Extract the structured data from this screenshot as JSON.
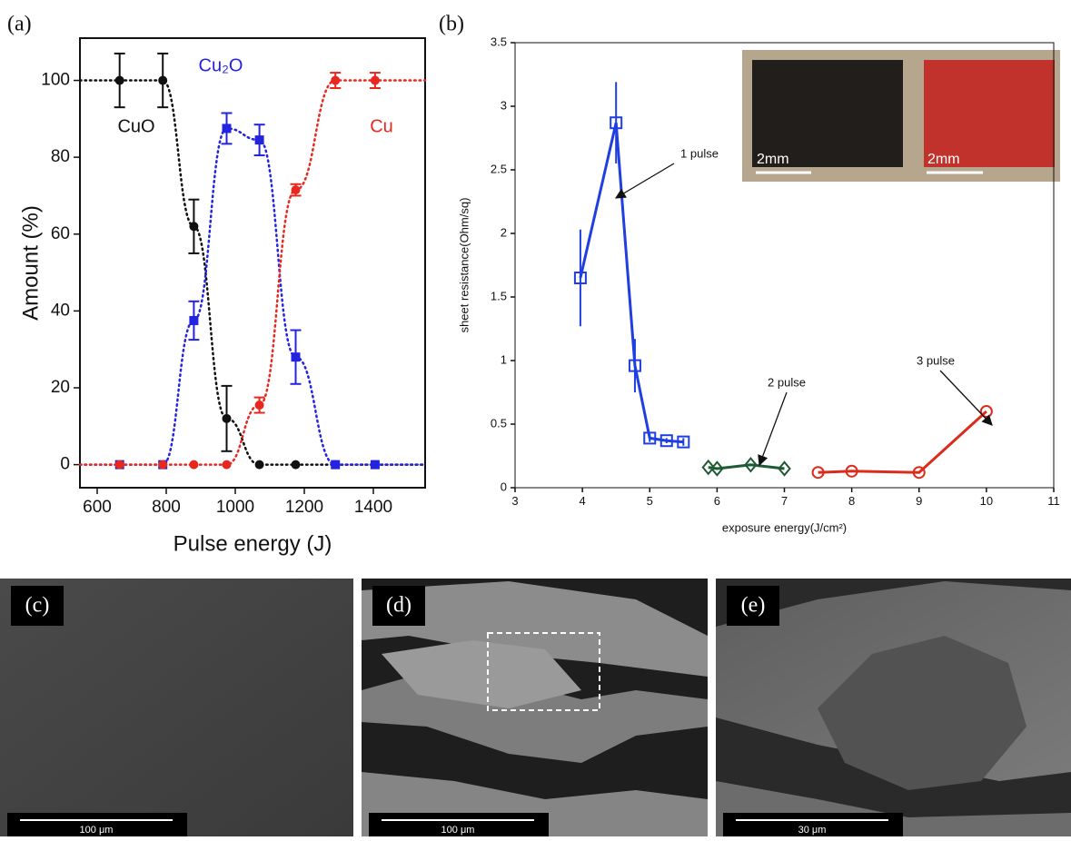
{
  "chart_data": [
    {
      "type": "line",
      "panel_label": "(a)",
      "x_label": "Pulse energy (J)",
      "y_label": "Amount (%)",
      "xlim": [
        550,
        1550
      ],
      "ylim": [
        -6,
        111
      ],
      "xticks": [
        600,
        800,
        1000,
        1200,
        1400
      ],
      "yticks": [
        0,
        20,
        40,
        60,
        80,
        100
      ],
      "grid": false,
      "line_style": "dotted",
      "series": [
        {
          "name": "CuO",
          "color": "#111111",
          "marker": "circle",
          "open": false,
          "x": [
            665,
            790,
            880,
            975,
            1070,
            1175,
            1290,
            1405
          ],
          "values": [
            100,
            100,
            62,
            12,
            0,
            0,
            0,
            0
          ],
          "errors": [
            7,
            7,
            7,
            8.5,
            null,
            null,
            null,
            null
          ]
        },
        {
          "name": "Cu₂O",
          "color": "#2323e0",
          "marker": "square",
          "open": false,
          "x": [
            665,
            790,
            880,
            975,
            1070,
            1175,
            1290,
            1405
          ],
          "values": [
            0,
            0,
            37.5,
            87.5,
            84.5,
            28,
            0,
            0
          ],
          "errors": [
            null,
            null,
            5,
            4,
            4,
            7,
            null,
            null
          ]
        },
        {
          "name": "Cu",
          "color": "#e8281e",
          "marker": "circle",
          "open": false,
          "x": [
            665,
            790,
            880,
            975,
            1070,
            1175,
            1290,
            1405
          ],
          "values": [
            0,
            0,
            0,
            0,
            15.5,
            71.5,
            100,
            100
          ],
          "errors": [
            null,
            null,
            null,
            null,
            2,
            1.5,
            2,
            2
          ]
        }
      ]
    },
    {
      "type": "line",
      "panel_label": "(b)",
      "x_label": "exposure energy(J/cm²)",
      "y_label": "sheet resistance(Ohm/sq)",
      "xlim": [
        3,
        11
      ],
      "ylim": [
        0,
        3.5
      ],
      "xticks": [
        3,
        4,
        5,
        6,
        7,
        8,
        9,
        10,
        11
      ],
      "yticks": [
        0,
        0.5,
        1,
        1.5,
        2,
        2.5,
        3,
        3.5
      ],
      "grid": false,
      "line_style": "solid",
      "series": [
        {
          "name": "1 pulse",
          "color": "#1f3fe0",
          "marker": "square",
          "open": true,
          "x": [
            3.97,
            4.5,
            4.78,
            5.0,
            5.25,
            5.5
          ],
          "values": [
            1.65,
            2.87,
            0.96,
            0.39,
            0.37,
            0.36
          ],
          "errors": [
            0.38,
            0.32,
            0.21,
            0.03,
            0.02,
            0.03
          ]
        },
        {
          "name": "2 pulse",
          "color": "#1e5b32",
          "marker": "diamond",
          "open": true,
          "x": [
            5.87,
            6.0,
            6.5,
            7.0
          ],
          "values": [
            0.16,
            0.15,
            0.18,
            0.15
          ],
          "errors": [
            null,
            null,
            null,
            null
          ]
        },
        {
          "name": "3 pulse",
          "color": "#dd2b1a",
          "marker": "circle",
          "open": true,
          "x": [
            7.5,
            8.0,
            9.0,
            10.0
          ],
          "values": [
            0.12,
            0.13,
            0.12,
            0.6
          ],
          "errors": [
            null,
            null,
            null,
            null
          ]
        }
      ]
    }
  ],
  "inset": {
    "scale_labels": [
      "2mm",
      "2mm"
    ]
  },
  "micrographs": [
    {
      "label": "(c)",
      "scale": "100 μm"
    },
    {
      "label": "(d)",
      "scale": "100 μm"
    },
    {
      "label": "(e)",
      "scale": "30 μm"
    }
  ]
}
